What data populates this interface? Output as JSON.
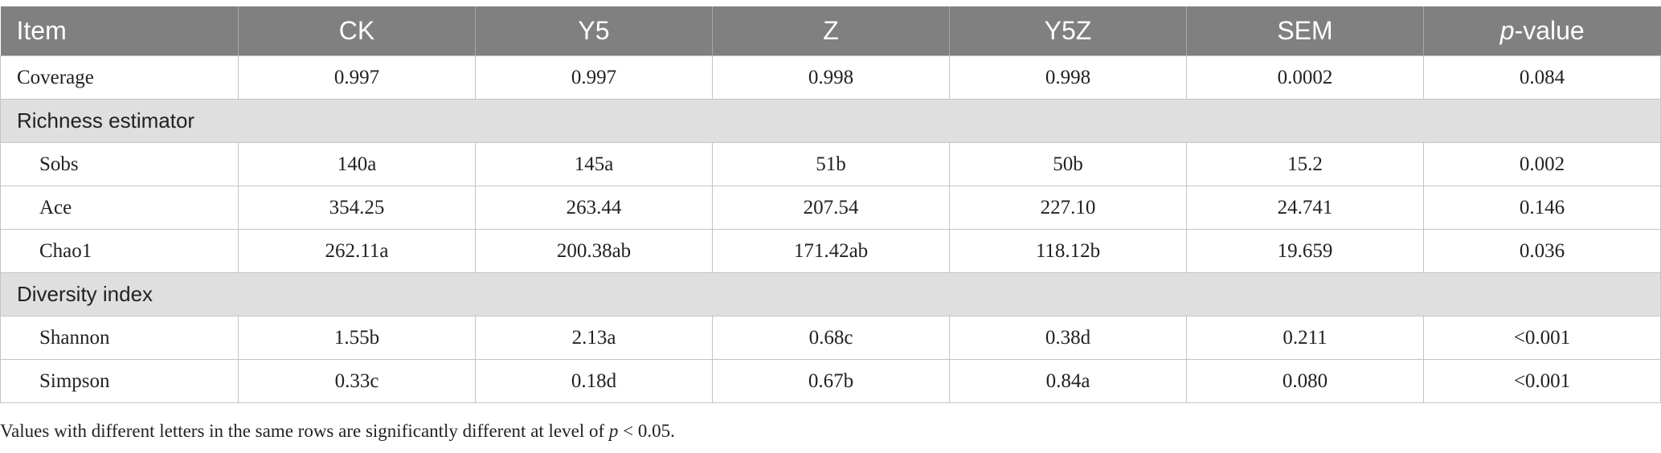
{
  "table": {
    "headers": {
      "item": "Item",
      "ck": "CK",
      "y5": "Y5",
      "z": "Z",
      "y5z": "Y5Z",
      "sem": "SEM",
      "p_italic": "p",
      "p_rest": "-value"
    },
    "coverage": [
      "Coverage",
      "0.997",
      "0.997",
      "0.998",
      "0.998",
      "0.0002",
      "0.084"
    ],
    "section_richness": "Richness estimator",
    "richness_rows": [
      [
        "Sobs",
        "140a",
        "145a",
        "51b",
        "50b",
        "15.2",
        "0.002"
      ],
      [
        "Ace",
        "354.25",
        "263.44",
        "207.54",
        "227.10",
        "24.741",
        "0.146"
      ],
      [
        "Chao1",
        "262.11a",
        "200.38ab",
        "171.42ab",
        "118.12b",
        "19.659",
        "0.036"
      ]
    ],
    "section_diversity": "Diversity index",
    "diversity_rows": [
      [
        "Shannon",
        "1.55b",
        "2.13a",
        "0.68c",
        "0.38d",
        "0.211",
        "<0.001"
      ],
      [
        "Simpson",
        "0.33c",
        "0.18d",
        "0.67b",
        "0.84a",
        "0.080",
        "<0.001"
      ]
    ]
  },
  "footnote": {
    "text": "Values with different letters in the same rows are significantly different at level of ",
    "p": "p",
    "tail": " < 0.05."
  }
}
